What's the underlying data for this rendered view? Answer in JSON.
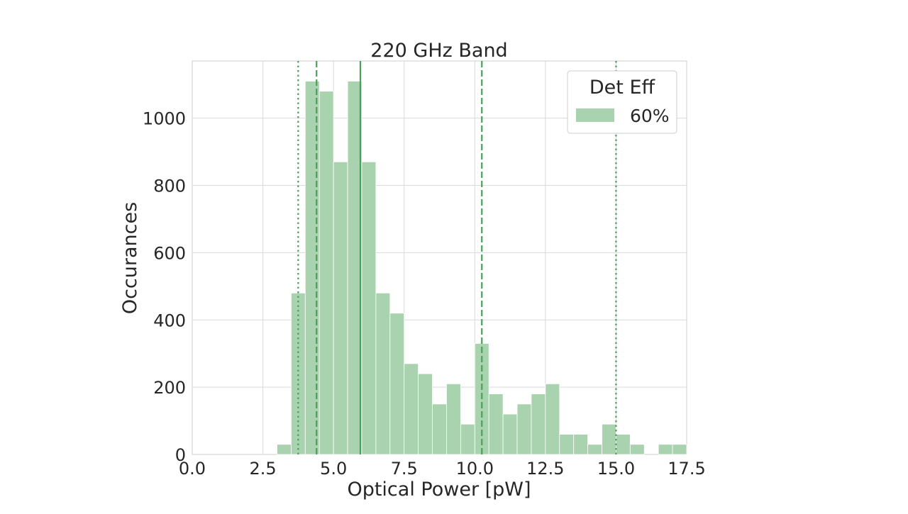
{
  "chart_data": {
    "type": "bar",
    "title": "220 GHz Band",
    "xlabel": "Optical Power [pW]",
    "ylabel": "Occurances",
    "xlim": [
      0.0,
      17.5
    ],
    "ylim": [
      0,
      1170
    ],
    "xticks": [
      0.0,
      2.5,
      5.0,
      7.5,
      10.0,
      12.5,
      15.0,
      17.5
    ],
    "xtick_labels": [
      "0.0",
      "2.5",
      "5.0",
      "7.5",
      "10.0",
      "12.5",
      "15.0",
      "17.5"
    ],
    "yticks": [
      0,
      200,
      400,
      600,
      800,
      1000
    ],
    "ytick_labels": [
      "0",
      "200",
      "400",
      "600",
      "800",
      "1000"
    ],
    "grid": true,
    "legend": {
      "title": "Det Eff",
      "placement": "top-right"
    },
    "bin_width": 0.5,
    "series": [
      {
        "name": "60%",
        "color": "#a9d3ae",
        "bins": [
          [
            3.0,
            30
          ],
          [
            3.5,
            480
          ],
          [
            4.0,
            1110
          ],
          [
            4.5,
            1080
          ],
          [
            5.0,
            870
          ],
          [
            5.5,
            1110
          ],
          [
            6.0,
            870
          ],
          [
            6.5,
            480
          ],
          [
            7.0,
            420
          ],
          [
            7.5,
            270
          ],
          [
            8.0,
            240
          ],
          [
            8.5,
            150
          ],
          [
            9.0,
            210
          ],
          [
            9.5,
            90
          ],
          [
            10.0,
            330
          ],
          [
            10.5,
            180
          ],
          [
            11.0,
            120
          ],
          [
            11.5,
            150
          ],
          [
            12.0,
            180
          ],
          [
            12.5,
            210
          ],
          [
            13.0,
            60
          ],
          [
            13.5,
            60
          ],
          [
            14.0,
            30
          ],
          [
            14.5,
            90
          ],
          [
            15.0,
            60
          ],
          [
            15.5,
            30
          ],
          [
            16.0,
            0
          ],
          [
            16.5,
            30
          ],
          [
            17.0,
            30
          ]
        ]
      }
    ],
    "reference_lines": [
      {
        "x": 5.95,
        "style": "solid"
      },
      {
        "x": 4.4,
        "style": "dashed"
      },
      {
        "x": 10.25,
        "style": "dashed"
      },
      {
        "x": 3.75,
        "style": "dotted"
      },
      {
        "x": 15.0,
        "style": "dotted"
      }
    ],
    "line_color": "#4aa05a"
  }
}
